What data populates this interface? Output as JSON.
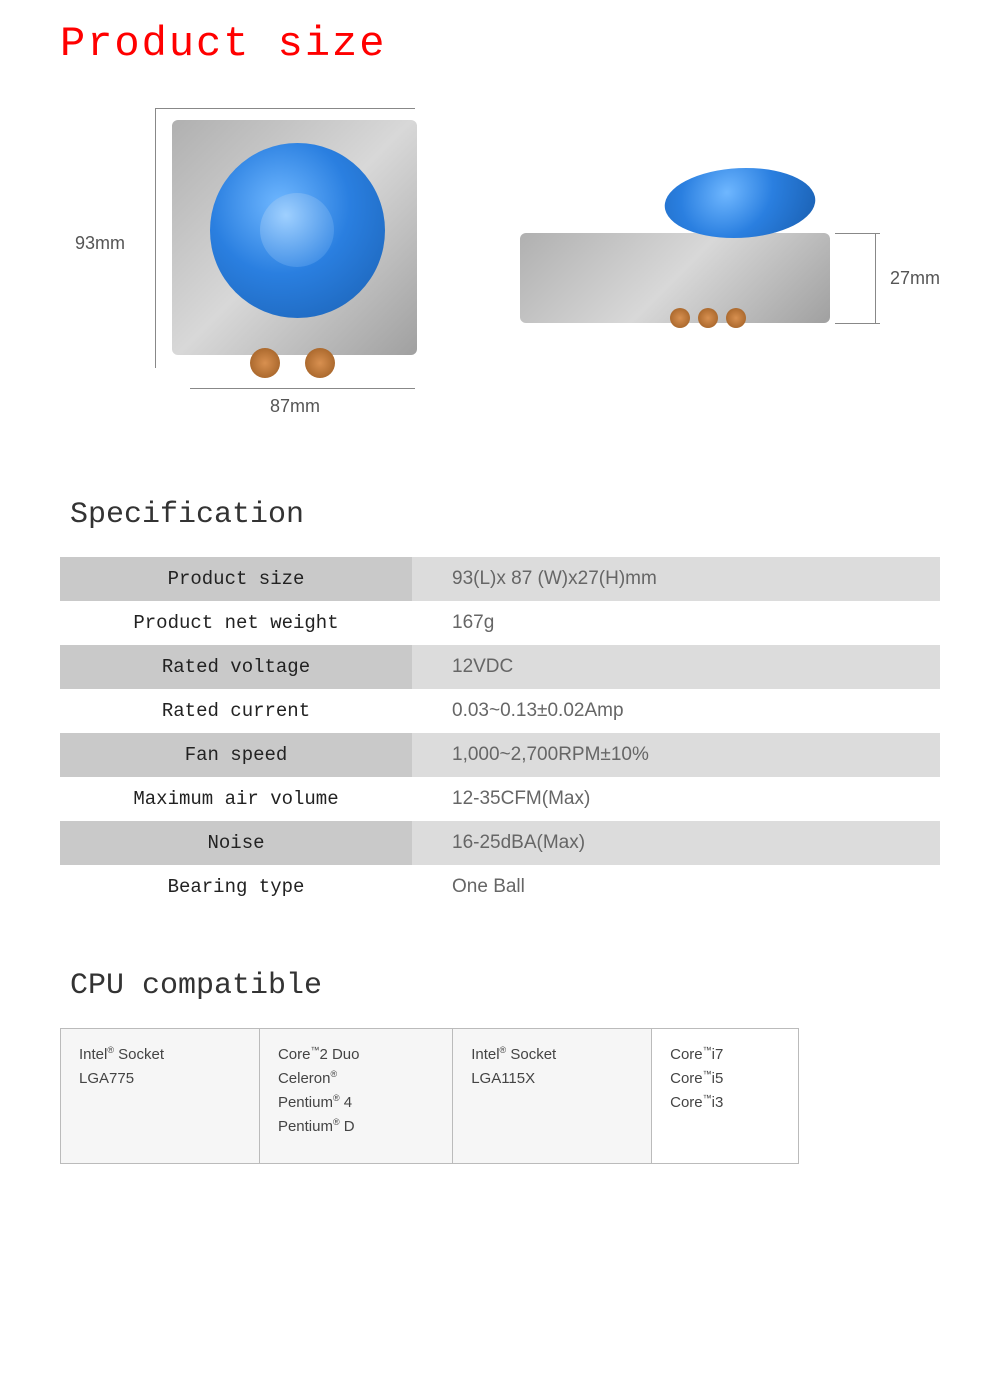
{
  "title": "Product size",
  "dimensions": {
    "height_label": "93mm",
    "width_label": "87mm",
    "depth_label": "27mm"
  },
  "colors": {
    "title_color": "#ff0000",
    "heading_color": "#333333",
    "label_shade_bg": "#c9c9c9",
    "value_shade_bg": "#dcdcdc",
    "plain_bg": "#ffffff",
    "spec_label_text": "#222222",
    "spec_value_text": "#666666",
    "fan_blue_light": "#6fb7ff",
    "fan_blue_dark": "#1a5fb0",
    "metal_light": "#d8d8d8",
    "metal_dark": "#a0a0a0",
    "compat_border": "#bbbbbb",
    "compat_bg": "#f6f6f6"
  },
  "spec_heading": "Specification",
  "spec_rows": [
    {
      "label": "Product size",
      "value": "93(L)x  87 (W)x27(H)mm",
      "shaded": true
    },
    {
      "label": "Product net weight",
      "value": "167g",
      "shaded": false
    },
    {
      "label": "Rated voltage",
      "value": "12VDC",
      "shaded": true
    },
    {
      "label": "Rated current",
      "value": "0.03~0.13±0.02Amp",
      "shaded": false
    },
    {
      "label": "Fan speed",
      "value": "1,000~2,700RPM±10%",
      "shaded": true
    },
    {
      "label": "Maximum air volume",
      "value": "12-35CFM(Max)",
      "shaded": false
    },
    {
      "label": "Noise",
      "value": "16-25dBA(Max)",
      "shaded": true
    },
    {
      "label": "Bearing type",
      "value": "One Ball",
      "shaded": false
    }
  ],
  "compat_heading": "CPU compatible",
  "compat_cells": [
    {
      "text": "Intel® Socket\nLGA775",
      "light": false
    },
    {
      "text": "Core™2 Duo\nCeleron®\nPentium® 4\nPentium® D",
      "light": false
    },
    {
      "text": "Intel® Socket\nLGA115X",
      "light": false
    },
    {
      "text": "Core™i7\nCore™i5\nCore™i3",
      "light": true
    }
  ]
}
